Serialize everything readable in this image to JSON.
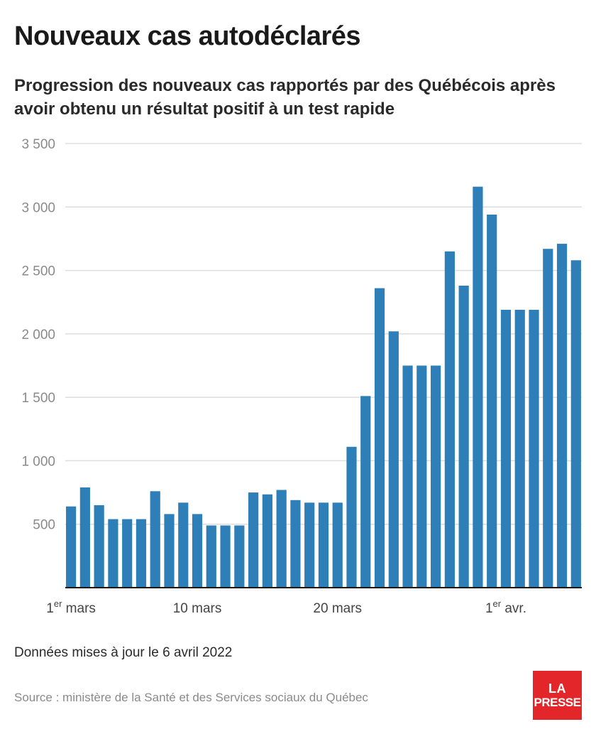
{
  "header": {
    "title": "Nouveaux cas autodéclarés",
    "subtitle": "Progression des nouveaux cas rapportés par des Québécois après avoir obtenu un résultat positif à un test rapide"
  },
  "footer": {
    "updated": "Données mises à jour le 6 avril 2022",
    "source": "Source : ministère de la Santé et des Services sociaux du Québec"
  },
  "logo": {
    "line1": "LA",
    "line2": "PRESSE",
    "color": "#e3262a"
  },
  "colors": {
    "bar": "#2e7fb8",
    "grid": "#dddddd",
    "axis": "#1a1a1a"
  },
  "chart_data": {
    "type": "bar",
    "title": "Nouveaux cas autodéclarés",
    "xlabel": "",
    "ylabel": "",
    "ylim": [
      0,
      3500
    ],
    "yticks": [
      {
        "value": 500,
        "label": "500"
      },
      {
        "value": 1000,
        "label": "1 000"
      },
      {
        "value": 1500,
        "label": "1 500"
      },
      {
        "value": 2000,
        "label": "2 000"
      },
      {
        "value": 2500,
        "label": "2 500"
      },
      {
        "value": 3000,
        "label": "3 000"
      },
      {
        "value": 3500,
        "label": "3 500"
      }
    ],
    "xticks": [
      {
        "index": 0,
        "label": "1",
        "sup": "er",
        "rest": " mars"
      },
      {
        "index": 9,
        "label": "10 mars",
        "sup": "",
        "rest": ""
      },
      {
        "index": 19,
        "label": "20 mars",
        "sup": "",
        "rest": ""
      },
      {
        "index": 31,
        "label": "1",
        "sup": "er",
        "rest": " avr."
      }
    ],
    "grid": true,
    "categories": [
      "2022-03-01",
      "2022-03-02",
      "2022-03-03",
      "2022-03-04",
      "2022-03-05",
      "2022-03-06",
      "2022-03-07",
      "2022-03-08",
      "2022-03-09",
      "2022-03-10",
      "2022-03-11",
      "2022-03-12",
      "2022-03-13",
      "2022-03-14",
      "2022-03-15",
      "2022-03-16",
      "2022-03-17",
      "2022-03-18",
      "2022-03-19",
      "2022-03-20",
      "2022-03-21",
      "2022-03-22",
      "2022-03-23",
      "2022-03-24",
      "2022-03-25",
      "2022-03-26",
      "2022-03-27",
      "2022-03-28",
      "2022-03-29",
      "2022-03-30",
      "2022-03-31",
      "2022-04-01",
      "2022-04-02",
      "2022-04-03",
      "2022-04-04",
      "2022-04-05",
      "2022-04-06"
    ],
    "values": [
      640,
      790,
      650,
      540,
      540,
      540,
      760,
      580,
      670,
      580,
      490,
      490,
      490,
      750,
      735,
      770,
      690,
      670,
      670,
      670,
      1110,
      1510,
      2360,
      2020,
      1750,
      1750,
      1750,
      2650,
      2380,
      3160,
      2940,
      2190,
      2190,
      2190,
      2670,
      2710,
      2580
    ]
  }
}
